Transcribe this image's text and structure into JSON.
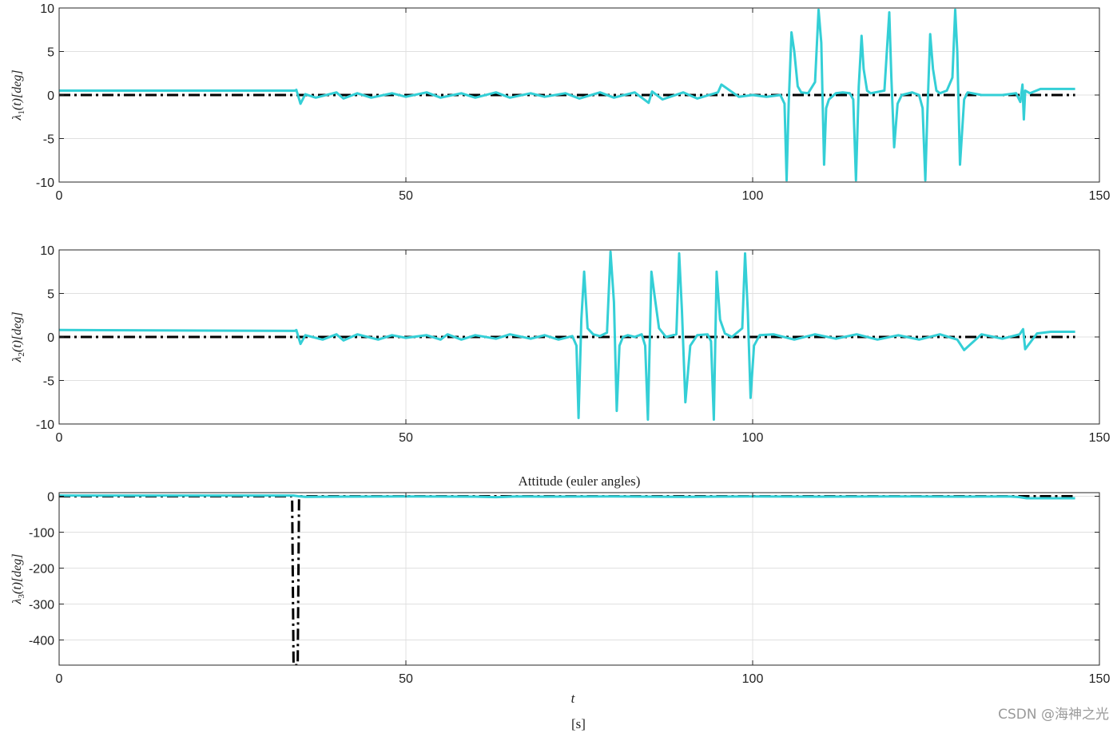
{
  "figure": {
    "xlabel": "t",
    "xunit": "[s]",
    "watermark": "CSDN @海神之光"
  },
  "colors": {
    "measured": "#34cfd6",
    "reference": "#000000",
    "grid": "#e0e0e0",
    "axes": "#262626"
  },
  "chart_data": [
    {
      "type": "line",
      "title": "",
      "ylabel": "λ1(t)[deg]",
      "ylabel_symbol": "λ",
      "ylabel_sub": "1",
      "ylabel_rest": "(t)[deg]",
      "xlim": [
        0,
        150
      ],
      "ylim": [
        -10,
        10
      ],
      "xticks": [
        0,
        50,
        100,
        150
      ],
      "yticks": [
        10,
        5,
        0,
        -5,
        -10
      ],
      "grid": true,
      "series": [
        {
          "style": "cyan-solid",
          "x": [
            0,
            34,
            34.2,
            34.8,
            35.5,
            37,
            40,
            41,
            43,
            45,
            48,
            50,
            53,
            55,
            58,
            60,
            63,
            65,
            68,
            70,
            73,
            75,
            78,
            80,
            83,
            85,
            85.5,
            87,
            90,
            92,
            95,
            95.5,
            98,
            100,
            102,
            104,
            104.6,
            104.9,
            105.2,
            105.6,
            106,
            106.5,
            107,
            108,
            109,
            109.5,
            109.9,
            110.3,
            110.6,
            111,
            112,
            113,
            114,
            114.5,
            114.9,
            115.3,
            115.7,
            116,
            116.5,
            117,
            119,
            119.7,
            120,
            120.4,
            120.9,
            121.5,
            123,
            124,
            124.5,
            124.9,
            125.2,
            125.6,
            126,
            126.5,
            127,
            128,
            128.8,
            129.2,
            129.5,
            129.9,
            130.5,
            131,
            133,
            136,
            138,
            138.6,
            138.9,
            139.1,
            139.3,
            140,
            141.5,
            143,
            146.5
          ],
          "y": [
            0.5,
            0.5,
            0.6,
            -1.0,
            0.1,
            -0.3,
            0.3,
            -0.4,
            0.2,
            -0.3,
            0.2,
            -0.2,
            0.3,
            -0.3,
            0.2,
            -0.3,
            0.3,
            -0.3,
            0.2,
            -0.2,
            0.2,
            -0.4,
            0.3,
            -0.3,
            0.3,
            -0.9,
            0.4,
            -0.5,
            0.3,
            -0.4,
            0.3,
            1.2,
            -0.2,
            0.0,
            -0.2,
            0.0,
            -1.0,
            -9.8,
            -1.0,
            7.2,
            5.0,
            1.0,
            0.3,
            0.2,
            1.5,
            9.8,
            6.0,
            -8.0,
            -1.5,
            -0.5,
            0.2,
            0.3,
            0.2,
            -0.5,
            -9.8,
            1.0,
            6.8,
            3.0,
            0.5,
            0.2,
            0.5,
            9.5,
            2.0,
            -6.0,
            -1.0,
            0.0,
            0.3,
            0.0,
            -1.5,
            -9.8,
            -2.0,
            7.0,
            3.0,
            0.5,
            0.2,
            0.5,
            2.0,
            9.8,
            5.0,
            -8.0,
            -0.5,
            0.3,
            0.0,
            0.0,
            0.2,
            -0.8,
            1.2,
            -2.8,
            0.5,
            0.2,
            0.7,
            0.7,
            0.7
          ]
        },
        {
          "style": "black-dashdot",
          "x": [
            0,
            146.5
          ],
          "y": [
            0,
            0
          ]
        }
      ]
    },
    {
      "type": "line",
      "title": "",
      "ylabel": "λ2(t)[deg]",
      "ylabel_symbol": "λ",
      "ylabel_sub": "2",
      "ylabel_rest": "(t)[deg]",
      "xlim": [
        0,
        150
      ],
      "ylim": [
        -10,
        10
      ],
      "xticks": [
        0,
        50,
        100,
        150
      ],
      "yticks": [
        10,
        5,
        0,
        -5,
        -10
      ],
      "grid": true,
      "series": [
        {
          "style": "cyan-solid",
          "x": [
            0,
            34,
            34.2,
            34.8,
            35.5,
            38,
            40,
            41,
            43,
            46,
            48,
            50,
            53,
            55,
            56,
            58,
            60,
            63,
            65,
            68,
            70,
            72,
            74,
            74.6,
            74.9,
            75.3,
            75.7,
            76.2,
            77,
            78,
            79,
            79.5,
            80,
            80.4,
            80.8,
            81.3,
            82,
            83,
            84,
            84.5,
            84.9,
            85.4,
            85.9,
            86.5,
            87.5,
            88.5,
            89,
            89.4,
            89.8,
            90.3,
            91,
            92,
            93.5,
            94,
            94.4,
            94.8,
            95.3,
            96,
            97,
            98.5,
            98.9,
            99.3,
            99.7,
            100.2,
            101,
            103,
            106,
            109,
            112,
            115,
            118,
            121,
            124,
            127,
            129.5,
            130.5,
            133,
            136,
            138.5,
            139,
            139.3,
            141,
            143,
            146.5
          ],
          "y": [
            0.8,
            0.7,
            0.8,
            -0.8,
            0.2,
            -0.3,
            0.3,
            -0.4,
            0.3,
            -0.3,
            0.2,
            -0.1,
            0.2,
            -0.3,
            0.3,
            -0.3,
            0.2,
            -0.2,
            0.3,
            -0.2,
            0.2,
            -0.3,
            0.1,
            -1.0,
            -9.3,
            2.0,
            7.5,
            1.0,
            0.3,
            0.1,
            0.5,
            9.8,
            4.0,
            -8.5,
            -1.0,
            0.0,
            0.2,
            0.0,
            0.3,
            -1.0,
            -9.5,
            7.5,
            4.5,
            1.0,
            0.0,
            0.2,
            0.3,
            9.6,
            3.0,
            -7.5,
            -1.0,
            0.2,
            0.3,
            -0.5,
            -9.5,
            7.5,
            2.0,
            0.4,
            0.0,
            1.0,
            9.6,
            3.0,
            -7.0,
            -1.0,
            0.2,
            0.3,
            -0.3,
            0.3,
            -0.2,
            0.3,
            -0.3,
            0.2,
            -0.3,
            0.3,
            -0.3,
            -1.5,
            0.3,
            -0.2,
            0.3,
            0.9,
            -1.4,
            0.4,
            0.6,
            0.6
          ]
        },
        {
          "style": "black-dashdot",
          "x": [
            0,
            146.5
          ],
          "y": [
            0,
            0
          ]
        }
      ]
    },
    {
      "type": "line",
      "title": "Attitude (euler angles)",
      "ylabel": "λ3(t)[deg]",
      "ylabel_symbol": "λ",
      "ylabel_sub": "3",
      "ylabel_rest": "(t)[deg]",
      "xlim": [
        0,
        150
      ],
      "ylim": [
        -470,
        10
      ],
      "xticks": [
        0,
        50,
        100,
        150
      ],
      "yticks": [
        0,
        -100,
        -200,
        -300,
        -400
      ],
      "grid": true,
      "series": [
        {
          "style": "cyan-solid",
          "x": [
            0,
            33.8,
            34.5,
            35.5,
            40,
            50,
            60,
            63,
            66,
            70,
            80,
            90,
            100,
            110,
            120,
            130,
            137,
            138.5,
            139.5,
            146.5
          ],
          "y": [
            2.0,
            2.0,
            0.0,
            -1.5,
            -1.0,
            -0.5,
            -1.0,
            -2.5,
            -0.5,
            -1.0,
            -0.5,
            -1.5,
            -0.5,
            -1.0,
            -0.5,
            -1.0,
            -0.5,
            -2.5,
            -5.5,
            -5.5
          ]
        },
        {
          "style": "black-dashdot",
          "x": [
            0,
            33.6,
            33.8,
            34.0,
            34.2,
            34.4,
            34.6,
            35.2,
            146.5
          ],
          "y": [
            0,
            0,
            -470,
            -470,
            -470,
            -470,
            0,
            0,
            0
          ]
        }
      ]
    }
  ]
}
